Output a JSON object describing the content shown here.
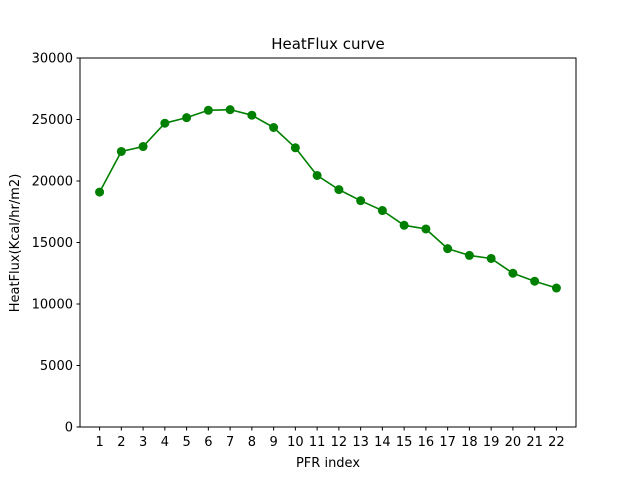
{
  "chart_data": {
    "type": "line",
    "title": "HeatFlux curve",
    "xlabel": "PFR index",
    "ylabel": "HeatFlux(Kcal/hr/m2)",
    "x": [
      1,
      2,
      3,
      4,
      5,
      6,
      7,
      8,
      9,
      10,
      11,
      12,
      13,
      14,
      15,
      16,
      17,
      18,
      19,
      20,
      21,
      22
    ],
    "series": [
      {
        "name": "HeatFlux",
        "color": "#008000",
        "marker": "circle",
        "values": [
          19100,
          22400,
          22800,
          24700,
          25150,
          25750,
          25800,
          25350,
          24350,
          22700,
          20450,
          19300,
          18400,
          17600,
          16400,
          16100,
          14500,
          13950,
          13700,
          12500,
          11850,
          11300
        ]
      }
    ],
    "xlim": [
      0.1,
      22.9
    ],
    "ylim": [
      0,
      30000
    ],
    "xticks": [
      1,
      2,
      3,
      4,
      5,
      6,
      7,
      8,
      9,
      10,
      11,
      12,
      13,
      14,
      15,
      16,
      17,
      18,
      19,
      20,
      21,
      22
    ],
    "yticks": [
      0,
      5000,
      10000,
      15000,
      20000,
      25000,
      30000
    ],
    "grid": false,
    "legend": "none"
  }
}
